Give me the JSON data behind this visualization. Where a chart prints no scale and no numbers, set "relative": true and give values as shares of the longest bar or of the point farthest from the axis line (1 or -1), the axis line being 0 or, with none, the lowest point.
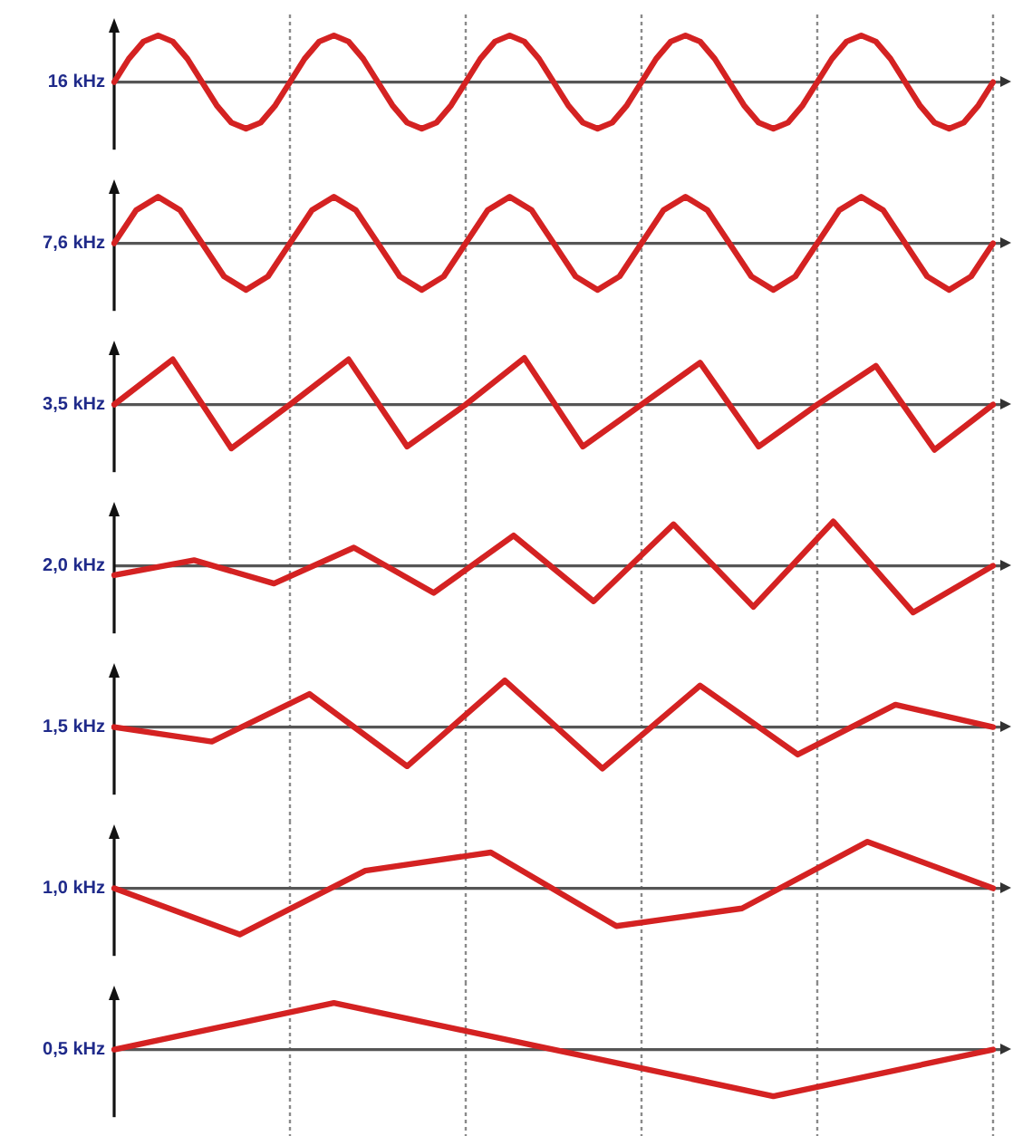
{
  "chart_data": [
    {
      "type": "line",
      "ylabel": "16 kHz",
      "relative": true,
      "color": "#d42222",
      "marker": "none",
      "grid": "x",
      "categories": [
        null,
        null,
        null,
        null,
        null,
        null,
        null,
        null,
        null,
        null,
        null,
        null,
        null,
        null,
        null,
        null,
        null,
        null,
        null,
        null,
        null,
        null,
        null,
        null,
        null,
        null,
        null,
        null,
        null,
        null,
        null,
        null,
        null,
        null,
        null,
        null,
        null,
        null,
        null,
        null,
        null,
        null,
        null,
        null,
        null,
        null,
        null,
        null,
        null,
        null,
        null,
        null,
        null,
        null,
        null,
        null,
        null,
        null,
        null,
        null,
        null
      ],
      "values": [
        0,
        0.5,
        0.87,
        1,
        0.87,
        0.5,
        0,
        -0.5,
        -0.87,
        -1,
        -0.87,
        -0.5,
        0,
        0.5,
        0.87,
        1,
        0.87,
        0.5,
        0,
        -0.5,
        -0.87,
        -1,
        -0.87,
        -0.5,
        0,
        0.5,
        0.87,
        1,
        0.87,
        0.5,
        0,
        -0.5,
        -0.87,
        -1,
        -0.87,
        -0.5,
        0,
        0.5,
        0.87,
        1,
        0.87,
        0.5,
        0,
        -0.5,
        -0.87,
        -1,
        -0.87,
        -0.5,
        0,
        0.5,
        0.87,
        1,
        0.87,
        0.5,
        0,
        -0.5,
        -0.87,
        -1,
        -0.87,
        -0.5,
        0
      ]
    },
    {
      "type": "line",
      "ylabel": "7,6 kHz",
      "relative": true,
      "color": "#d42222",
      "marker": "none",
      "grid": "x",
      "categories": [
        null,
        null,
        null,
        null,
        null,
        null,
        null,
        null,
        null,
        null,
        null,
        null,
        null,
        null,
        null,
        null,
        null,
        null,
        null,
        null,
        null,
        null,
        null,
        null,
        null,
        null,
        null,
        null,
        null,
        null,
        null,
        null,
        null,
        null,
        null,
        null,
        null,
        null,
        null,
        null,
        null
      ],
      "values": [
        0,
        0.71,
        1,
        0.71,
        0,
        -0.71,
        -1,
        -0.71,
        0,
        0.71,
        1,
        0.71,
        0,
        -0.71,
        -1,
        -0.71,
        0,
        0.71,
        1,
        0.71,
        0,
        -0.71,
        -1,
        -0.71,
        0,
        0.71,
        1,
        0.71,
        0,
        -0.71,
        -1,
        -0.71,
        0,
        0.71,
        1,
        0.71,
        0,
        -0.71,
        -1,
        -0.71,
        0
      ]
    },
    {
      "type": "line",
      "ylabel": "3,5 kHz",
      "relative": true,
      "color": "#d42222",
      "marker": "none",
      "grid": "x",
      "categories": [
        null,
        null,
        null,
        null,
        null,
        null,
        null,
        null,
        null,
        null,
        null,
        null,
        null,
        null,
        null,
        null
      ],
      "values": [
        0,
        0.97,
        -0.94,
        0,
        0.97,
        -0.9,
        0,
        1,
        -0.9,
        0,
        0.9,
        -0.9,
        0,
        0.83,
        -0.97,
        0
      ]
    },
    {
      "type": "line",
      "ylabel": "2,0 kHz",
      "relative": true,
      "color": "#d42222",
      "marker": "none",
      "grid": "x",
      "categories": [
        null,
        null,
        null,
        null,
        null,
        null,
        null,
        null,
        null,
        null,
        null,
        null
      ],
      "values": [
        -0.2,
        0.12,
        -0.38,
        0.39,
        -0.58,
        0.65,
        -0.76,
        0.89,
        -0.88,
        0.95,
        -1,
        0
      ]
    },
    {
      "type": "line",
      "ylabel": "1,5 kHz",
      "relative": true,
      "color": "#d42222",
      "marker": "none",
      "grid": "x",
      "categories": [
        null,
        null,
        null,
        null,
        null,
        null,
        null,
        null,
        null,
        null
      ],
      "values": [
        0,
        -0.31,
        0.71,
        -0.84,
        1,
        -0.89,
        0.89,
        -0.59,
        0.48,
        0
      ]
    },
    {
      "type": "line",
      "ylabel": "1,0 kHz",
      "relative": true,
      "color": "#d42222",
      "marker": "none",
      "grid": "x",
      "categories": [
        null,
        null,
        null,
        null,
        null,
        null,
        null,
        null
      ],
      "values": [
        0,
        -0.99,
        0.38,
        0.77,
        -0.81,
        -0.43,
        1,
        0
      ]
    },
    {
      "type": "line",
      "ylabel": "0,5 kHz",
      "relative": true,
      "color": "#d42222",
      "marker": "none",
      "grid": "x",
      "categories": [
        null,
        null,
        null,
        null,
        null
      ],
      "values": [
        0,
        1,
        0,
        -1,
        0
      ]
    }
  ]
}
